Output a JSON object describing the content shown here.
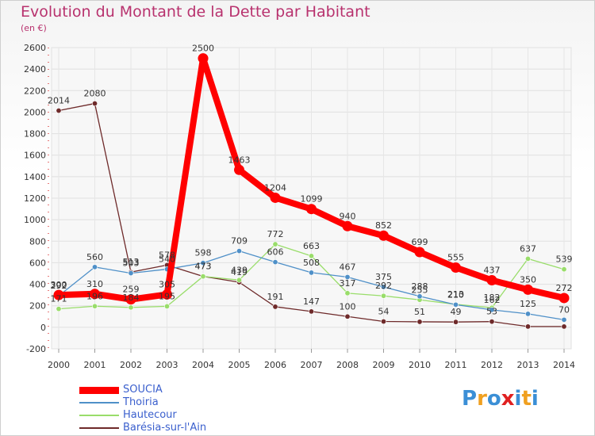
{
  "chart_data": {
    "type": "line",
    "title": "Evolution du Montant de la Dette par Habitant",
    "unit": "(en €)",
    "x": [
      "2000",
      "2001",
      "2002",
      "2003",
      "2004",
      "2005",
      "2006",
      "2007",
      "2008",
      "2009",
      "2010",
      "2011",
      "2012",
      "2013",
      "2014"
    ],
    "ylim": [
      -200,
      2600
    ],
    "yticks": [
      -200,
      0,
      200,
      400,
      600,
      800,
      1000,
      1200,
      1400,
      1600,
      1800,
      2000,
      2200,
      2400,
      2600
    ],
    "grid": true,
    "legend_position": "bottom-left",
    "series": [
      {
        "name": "SOUCIA",
        "color": "#ff0000",
        "values": [
          300,
          310,
          259,
          305,
          2500,
          1463,
          1204,
          1099,
          940,
          852,
          699,
          555,
          437,
          350,
          272
        ]
      },
      {
        "name": "Thoiria",
        "color": "#4f90c8",
        "values": [
          292,
          560,
          503,
          540,
          598,
          709,
          606,
          508,
          467,
          375,
          288,
          210,
          162,
          125,
          70
        ]
      },
      {
        "name": "Hautecour",
        "color": "#99dd6a",
        "values": [
          171,
          196,
          184,
          195,
          473,
          439,
          772,
          663,
          317,
          292,
          255,
          213,
          182,
          637,
          539
        ]
      },
      {
        "name": "Barésia-sur-l'Ain",
        "color": "#6e2a2a",
        "values": [
          2014,
          2080,
          513,
          578,
          473,
          419,
          191,
          147,
          100,
          54,
          51,
          49,
          53,
          7,
          7
        ]
      }
    ],
    "labeled_values": [
      [
        300,
        310,
        259,
        305,
        2500,
        1463,
        1204,
        1099,
        940,
        852,
        699,
        555,
        437,
        350,
        272
      ],
      [
        292,
        560,
        503,
        540,
        598,
        709,
        606,
        508,
        467,
        375,
        288,
        210,
        162,
        125,
        70
      ],
      [
        171,
        196,
        184,
        195,
        473,
        439,
        772,
        663,
        317,
        292,
        255,
        213,
        182,
        637,
        539
      ],
      [
        2014,
        2080,
        513,
        578,
        473,
        419,
        191,
        147,
        100,
        54,
        51,
        49,
        53
      ]
    ]
  },
  "brand": {
    "logo_text": "Proxiti",
    "logo_colors": [
      "#3b8fd6",
      "#f0a020",
      "#3b8fd6",
      "#e02020",
      "#3b8fd6",
      "#f0a020",
      "#3b8fd6"
    ]
  }
}
